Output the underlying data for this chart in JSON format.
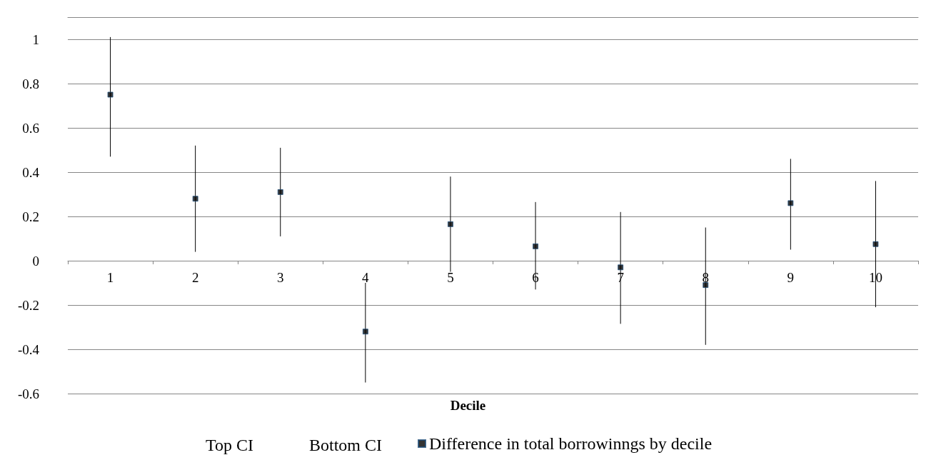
{
  "chart_data": {
    "type": "scatter",
    "xlabel": "Decile",
    "categories": [
      "1",
      "2",
      "3",
      "4",
      "5",
      "6",
      "7",
      "8",
      "9",
      "10"
    ],
    "series": [
      {
        "name": "Difference in total borrowinngs by decile",
        "color": "#000000",
        "values": [
          0.75,
          0.28,
          0.31,
          -0.32,
          0.165,
          0.065,
          -0.03,
          -0.11,
          0.26,
          0.075
        ],
        "errors": [
          [
            0.47,
            1.01
          ],
          [
            0.04,
            0.52
          ],
          [
            0.11,
            0.51
          ],
          [
            -0.55,
            -0.1
          ],
          [
            -0.05,
            0.38
          ],
          [
            -0.13,
            0.265
          ],
          [
            -0.285,
            0.22
          ],
          [
            -0.38,
            0.15
          ],
          [
            0.05,
            0.46
          ],
          [
            -0.21,
            0.36
          ]
        ]
      }
    ],
    "ylim": [
      -0.6,
      1.1
    ],
    "yticks": [
      -0.6,
      -0.4,
      -0.2,
      0,
      0.2,
      0.4,
      0.6,
      0.8,
      1
    ],
    "grid": "y",
    "marker": "square",
    "legend": "bottom",
    "annotations": [
      "Top CI",
      "Bottom CI"
    ]
  }
}
